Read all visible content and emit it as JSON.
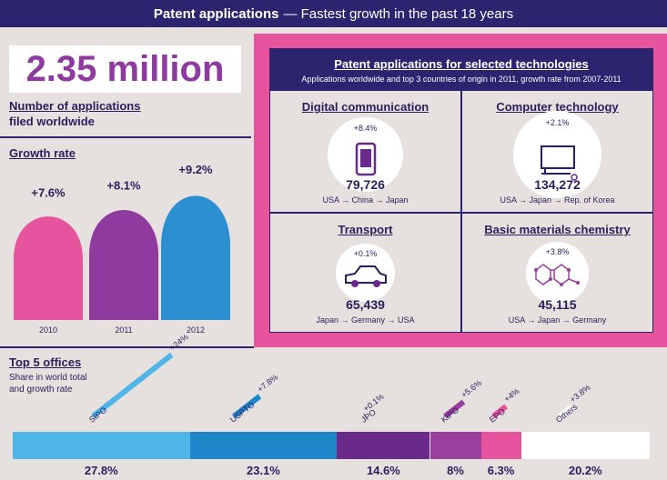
{
  "header": {
    "title_bold": "Patent applications",
    "title_rest": "— Fastest growth in the past 18 years"
  },
  "total": {
    "value": "2.35 million",
    "label_line1": "Number of applications",
    "label_line2": "filed worldwide"
  },
  "growth": {
    "title": "Growth rate",
    "bars": [
      {
        "year": "2010",
        "label": "+7.6%",
        "value": 7.6,
        "color": "#e6549e"
      },
      {
        "year": "2011",
        "label": "+8.1%",
        "value": 8.1,
        "color": "#8e3a9e"
      },
      {
        "year": "2012",
        "label": "+9.2%",
        "value": 9.2,
        "color": "#2b8fd1"
      }
    ]
  },
  "tech": {
    "title": "Patent applications for selected technologies",
    "subtitle": "Applications worldwide and top 3 countries of origin in 2011, growth rate from 2007-2011",
    "items": [
      {
        "name": "Digital communication",
        "growth": "+8.4%",
        "count": "79,726",
        "countries": "USA → China → Japan",
        "icon": "mobile-phone-icon"
      },
      {
        "name": "Computer technology",
        "growth": "+2.1%",
        "count": "134,272",
        "countries": "USA → Japan → Rep. of Korea",
        "icon": "computer-monitor-icon"
      },
      {
        "name": "Transport",
        "growth": "+0.1%",
        "count": "65,439",
        "countries": "Japan → Germany → USA",
        "icon": "car-icon"
      },
      {
        "name": "Basic materials chemistry",
        "growth": "+3.8%",
        "count": "45,115",
        "countries": "USA → Japan → Germany",
        "icon": "molecule-icon"
      }
    ]
  },
  "offices": {
    "title": "Top 5 offices",
    "subtitle_line1": "Share in world total",
    "subtitle_line2": "and growth rate"
  },
  "chart_data": {
    "type": "bar",
    "title": "Top 5 offices",
    "categories": [
      "SIPO",
      "USPTO",
      "JPO",
      "KIPO",
      "EPO",
      "Others"
    ],
    "series": [
      {
        "name": "Share in world total",
        "values": [
          27.8,
          23.1,
          14.6,
          8,
          6.3,
          20.2
        ],
        "labels": [
          "27.8%",
          "23.1%",
          "14.6%",
          "8%",
          "6.3%",
          "20.2%"
        ]
      },
      {
        "name": "Growth rate",
        "values": [
          24,
          7.8,
          0.1,
          5.6,
          4,
          3.8
        ],
        "labels": [
          "+24%",
          "+7.8%",
          "+0.1%",
          "+5.6%",
          "+4%",
          "+3.8%"
        ]
      }
    ],
    "colors": [
      "#4fb4e6",
      "#1f86c9",
      "#6a2a8a",
      "#9a3f9e",
      "#e6549e",
      "#ffffff"
    ]
  }
}
